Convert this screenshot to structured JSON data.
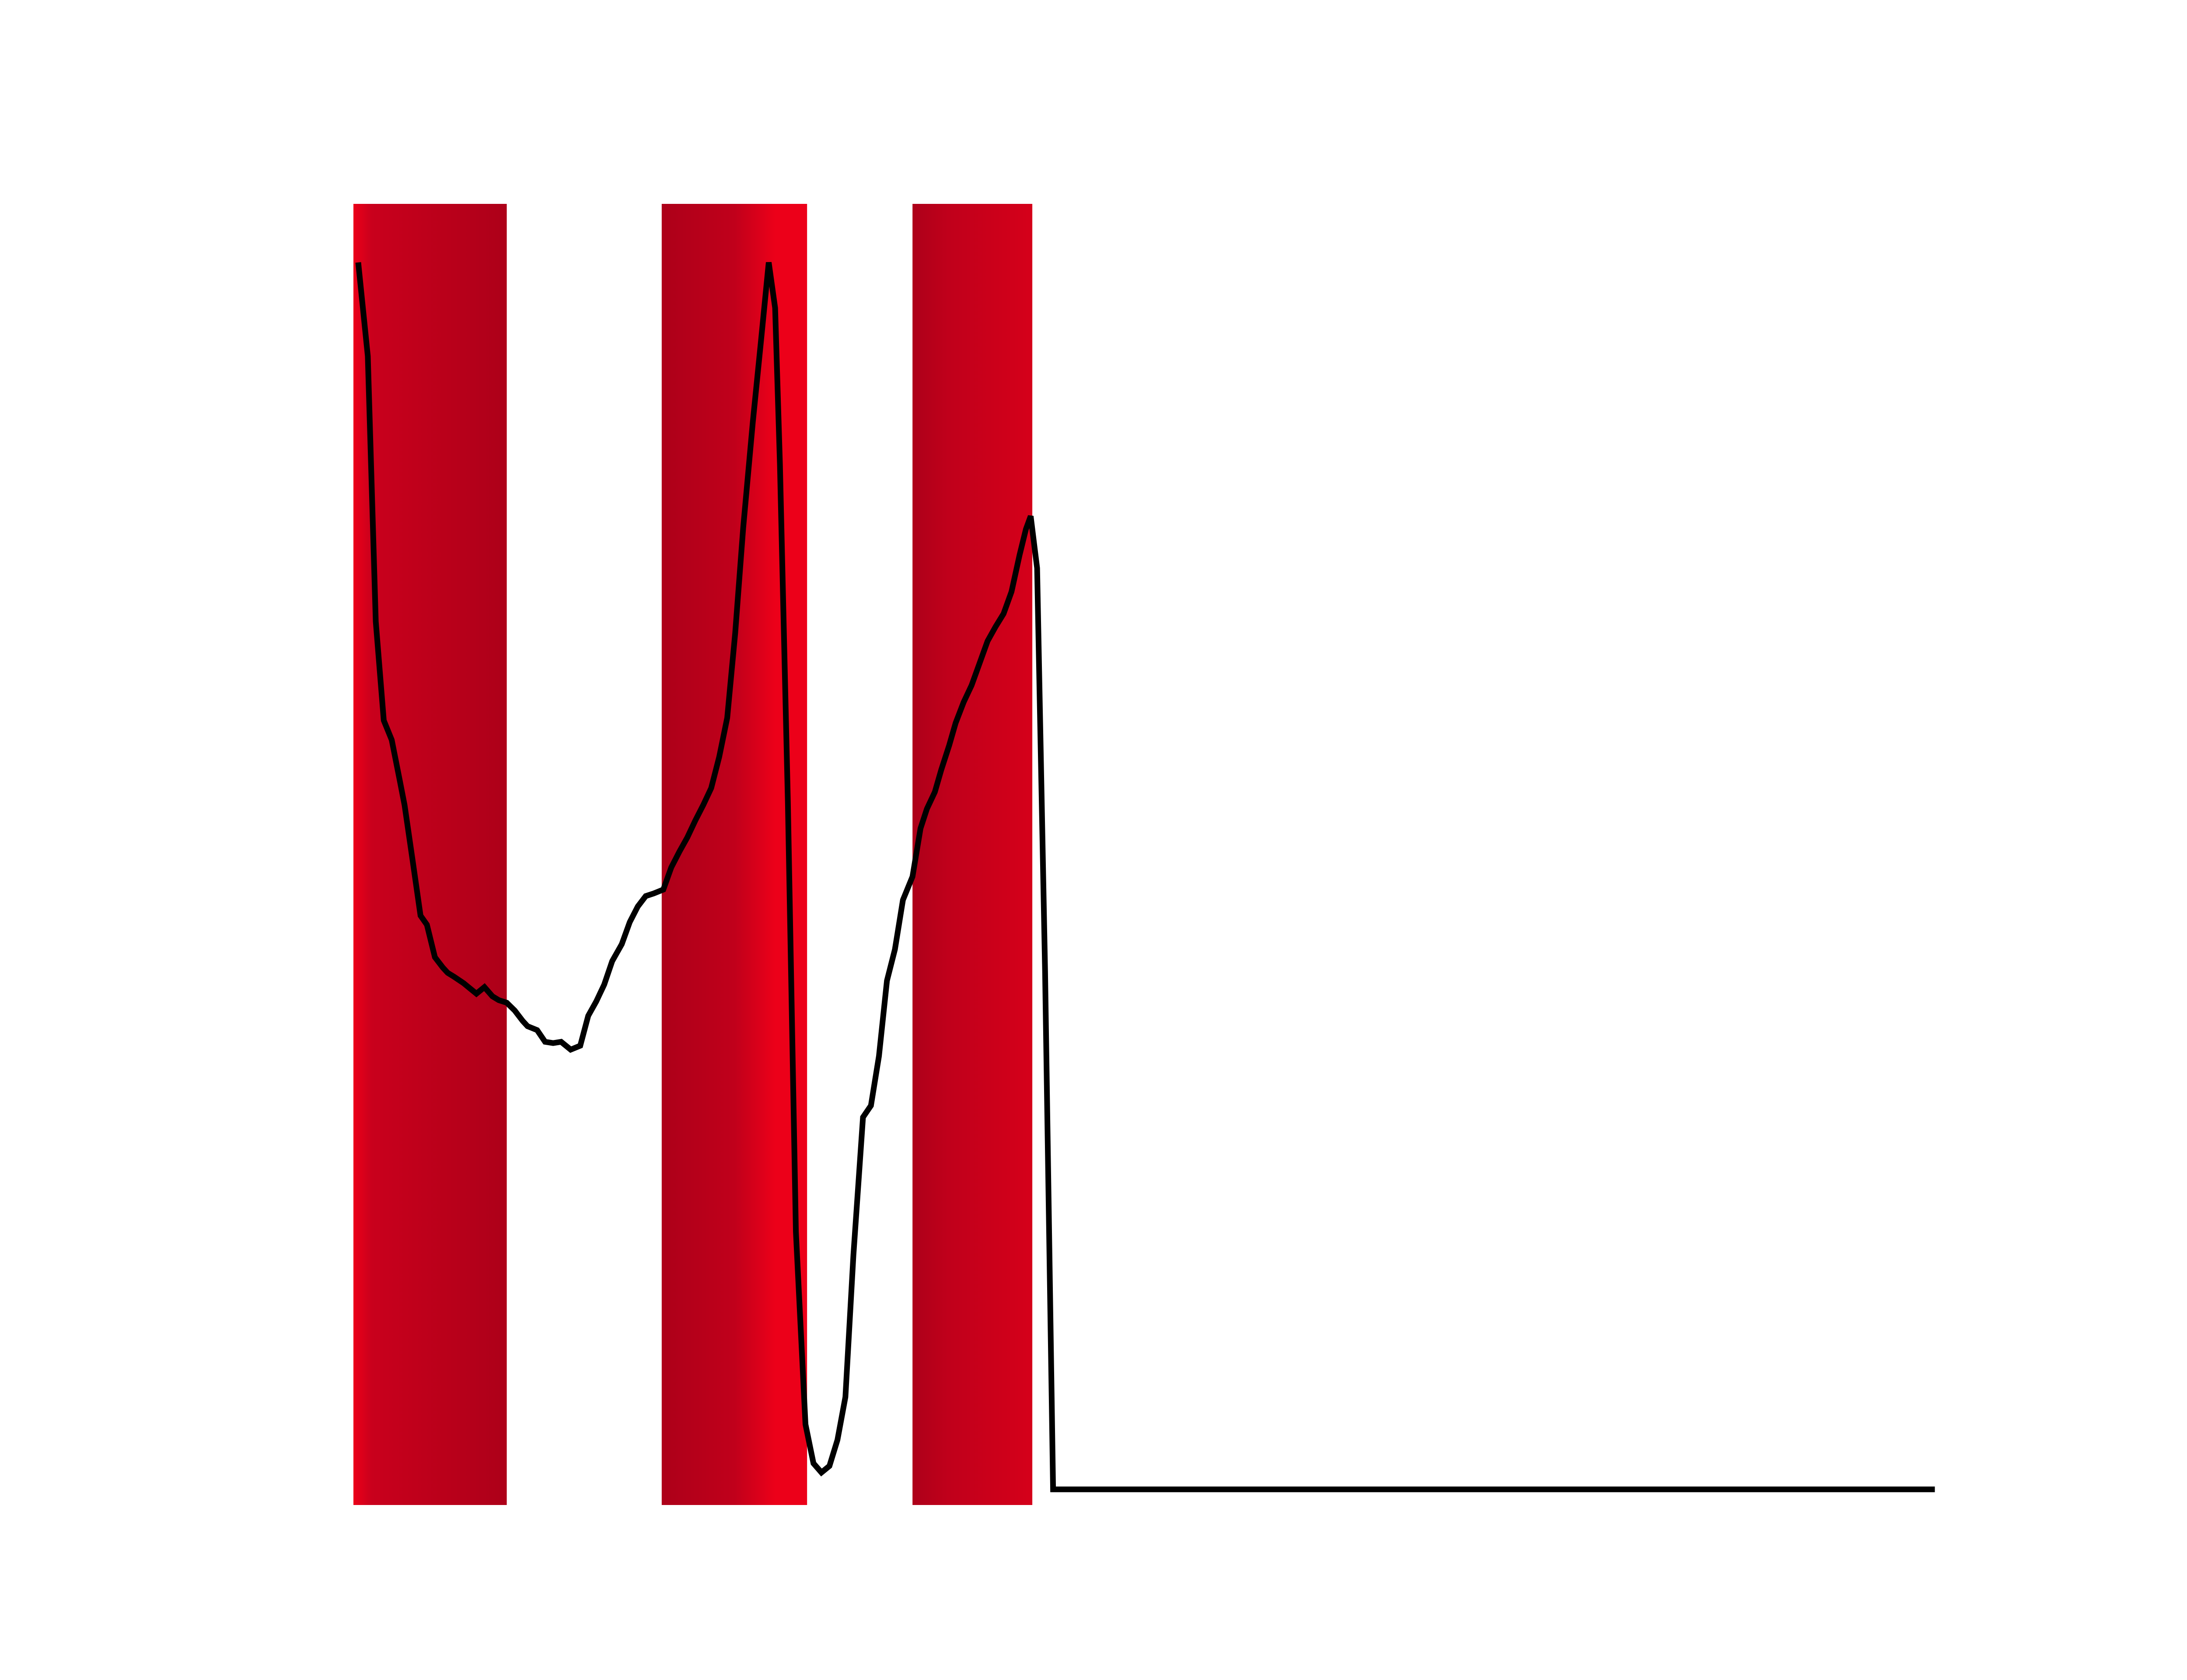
{
  "chart_data": {
    "type": "line",
    "title": "",
    "xlabel": "",
    "ylabel": "",
    "grid": false,
    "legend": "none",
    "axes_visible": false,
    "xlim": [
      0,
      100
    ],
    "ylim": [
      0,
      100
    ],
    "colors": {
      "line": "#000000",
      "band_dark": "#ad0019",
      "band_mid": "#c9001c",
      "band_bright": "#ec0019",
      "background": "#ffffff"
    },
    "bands": [
      {
        "x_start": 0,
        "x_end": 9.6,
        "gradient": [
          {
            "offset": 0.0,
            "color": "#ec0019"
          },
          {
            "offset": 0.12,
            "color": "#c9001c"
          },
          {
            "offset": 1.0,
            "color": "#ad0019"
          }
        ]
      },
      {
        "x_start": 19.3,
        "x_end": 28.4,
        "gradient": [
          {
            "offset": 0.0,
            "color": "#ad0019"
          },
          {
            "offset": 0.5,
            "color": "#c0001b"
          },
          {
            "offset": 0.78,
            "color": "#ec0019"
          },
          {
            "offset": 1.0,
            "color": "#ec0019"
          }
        ]
      },
      {
        "x_start": 35.0,
        "x_end": 42.5,
        "gradient": [
          {
            "offset": 0.0,
            "color": "#ad0019"
          },
          {
            "offset": 0.3,
            "color": "#c0001b"
          },
          {
            "offset": 1.0,
            "color": "#d5001a"
          }
        ]
      }
    ],
    "series": [
      {
        "x": [
          0.3,
          0.9,
          1.4,
          1.9,
          2.4,
          2.9,
          3.2,
          3.7,
          4.2,
          4.6,
          5.1,
          5.6,
          5.9,
          6.3,
          6.9,
          7.2,
          7.7,
          8.2,
          8.7,
          9.1,
          9.6,
          10.1,
          10.6,
          10.9,
          11.5,
          12.0,
          12.5,
          13.0,
          13.6,
          14.2,
          14.7,
          15.2,
          15.7,
          16.2,
          16.8,
          17.3,
          17.8,
          18.3,
          18.8,
          19.4,
          19.9,
          20.4,
          20.9,
          21.4,
          21.9,
          22.4,
          22.9,
          23.4,
          23.9,
          24.4,
          25.0,
          25.5,
          26.0,
          26.4,
          26.7,
          27.2,
          27.7,
          28.3,
          28.8,
          29.3,
          29.8,
          30.3,
          30.8,
          31.3,
          31.9,
          32.4,
          32.9,
          33.4,
          33.9,
          34.4,
          35.0,
          35.5,
          35.9,
          36.4,
          36.8,
          37.3,
          37.7,
          38.2,
          38.7,
          39.2,
          39.7,
          40.2,
          40.7,
          41.2,
          41.7,
          42.1,
          42.4,
          42.8,
          43.3,
          43.8,
          99.0
        ],
        "y": [
          95.5,
          88.3,
          67.9,
          60.3,
          58.8,
          55.7,
          53.8,
          49.6,
          45.3,
          44.6,
          42.1,
          41.3,
          40.9,
          40.6,
          40.1,
          39.8,
          39.3,
          39.8,
          39.1,
          38.8,
          38.6,
          38.0,
          37.2,
          36.8,
          36.5,
          35.6,
          35.5,
          35.6,
          35.0,
          35.3,
          37.6,
          38.7,
          40.0,
          41.8,
          43.1,
          44.8,
          46.0,
          46.8,
          47.0,
          47.3,
          49.0,
          50.2,
          51.3,
          52.6,
          53.8,
          55.1,
          57.5,
          60.5,
          67.0,
          75.1,
          83.2,
          89.3,
          95.5,
          92.0,
          80.0,
          54.0,
          21.0,
          6.2,
          3.2,
          2.5,
          3.0,
          5.0,
          8.3,
          19.2,
          29.8,
          30.7,
          34.5,
          40.3,
          42.7,
          46.5,
          48.3,
          52.0,
          53.5,
          54.8,
          56.5,
          58.4,
          60.1,
          61.7,
          63.0,
          64.7,
          66.4,
          67.5,
          68.5,
          70.2,
          73.0,
          75.0,
          76.0,
          72.0,
          41.0,
          1.2,
          1.2
        ]
      }
    ]
  }
}
